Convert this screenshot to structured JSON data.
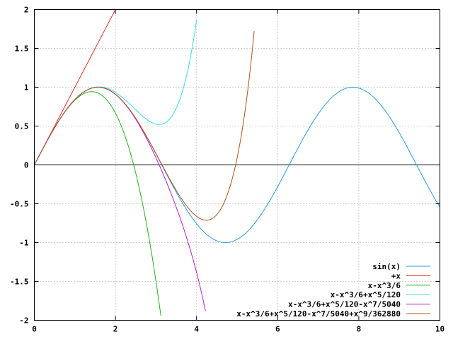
{
  "chart_data": {
    "type": "line",
    "title": "",
    "xlabel": "",
    "ylabel": "",
    "xlim": [
      0,
      10
    ],
    "ylim": [
      -2,
      2
    ],
    "x_ticks": [
      0,
      2,
      4,
      6,
      8,
      10
    ],
    "y_ticks": [
      -2,
      -1.5,
      -1,
      -0.5,
      0,
      0.5,
      1,
      1.5,
      2
    ],
    "x_tick_labels": [
      "0",
      "2",
      "4",
      "6",
      "8",
      "10"
    ],
    "y_tick_labels": [
      "-2",
      "-1.5",
      "-1",
      "-0.5",
      "0",
      "0.5",
      "1",
      "1.5",
      "2"
    ],
    "grid": true,
    "zero_axis": true,
    "legend_position": "bottom-right",
    "series": [
      {
        "name": "sin(x)",
        "expr": "sin",
        "color": "#2a9bd6",
        "x": [
          0,
          10
        ]
      },
      {
        "name": "+x",
        "expr": "t1",
        "color": "#e03030",
        "x": [
          0,
          2
        ]
      },
      {
        "name": "x-x^3/6",
        "expr": "t3",
        "color": "#22b022",
        "x": [
          0,
          3.12
        ]
      },
      {
        "name": "x-x^3/6+x^5/120",
        "expr": "t5",
        "color": "#33dede",
        "x": [
          0,
          4.0
        ]
      },
      {
        "name": "x-x^3/6+x^5/120-x^7/5040",
        "expr": "t7",
        "color": "#b020c8",
        "x": [
          0,
          4.22
        ]
      },
      {
        "name": "x-x^3/6+x^5/120-x^7/5040+x^9/362880",
        "expr": "t9",
        "color": "#b0501e",
        "x": [
          0,
          5.42
        ]
      }
    ]
  }
}
